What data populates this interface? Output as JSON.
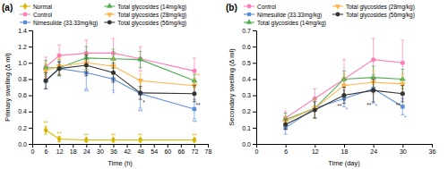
{
  "chart_data": [
    {
      "type": "line",
      "title": "(a)",
      "x": [
        6,
        12,
        24,
        36,
        48,
        72
      ],
      "series": [
        {
          "name": "Normal",
          "color": "#d4b800",
          "marker": "diamond",
          "values": [
            0.17,
            0.06,
            0.05,
            0.05,
            0.05,
            0.05
          ],
          "yerr": [
            0.05,
            0.03,
            0.02,
            0.02,
            0.02,
            0.02
          ]
        },
        {
          "name": "Control",
          "color": "#ff7eb6",
          "marker": "circle",
          "values": [
            0.95,
            1.09,
            1.12,
            1.12,
            1.05,
            0.9
          ],
          "yerr": [
            0.12,
            0.13,
            0.16,
            0.18,
            0.15,
            0.16
          ]
        },
        {
          "name": "Nimesulide (33.33mg/kg)",
          "color": "#5b8dd9",
          "marker": "square",
          "values": [
            0.78,
            0.93,
            0.88,
            0.8,
            0.62,
            0.43
          ],
          "yerr": [
            0.1,
            0.09,
            0.2,
            0.14,
            0.18,
            0.12
          ]
        },
        {
          "name": "Total glycosides (14mg/kg)",
          "color": "#4caf50",
          "marker": "triangle-up",
          "values": [
            0.94,
            0.94,
            1.06,
            1.05,
            1.04,
            0.78
          ],
          "yerr": [
            0.09,
            0.1,
            0.14,
            0.12,
            0.1,
            0.08
          ]
        },
        {
          "name": "Total glycosides (28mg/kg)",
          "color": "#ffb347",
          "marker": "triangle-down",
          "values": [
            0.9,
            0.96,
            1.0,
            0.96,
            0.78,
            0.72
          ],
          "yerr": [
            0.09,
            0.1,
            0.1,
            0.1,
            0.09,
            0.09
          ]
        },
        {
          "name": "Total glycosides (56mg/kg)",
          "color": "#333333",
          "marker": "circle",
          "values": [
            0.78,
            0.93,
            0.97,
            0.88,
            0.63,
            0.62
          ],
          "yerr": [
            0.1,
            0.08,
            0.13,
            0.12,
            0.08,
            0.1
          ]
        }
      ],
      "xlabel": "Time (h)",
      "ylabel": "Primary swelling (Δ ml)",
      "xlim": [
        0,
        78
      ],
      "ylim": [
        0,
        1.4
      ],
      "xticks": [
        0,
        6,
        12,
        18,
        24,
        30,
        36,
        42,
        48,
        54,
        60,
        66,
        72,
        78
      ],
      "yticks": [
        {
          "value": 0,
          "label": "0.0"
        },
        0.2,
        0.4,
        0.6,
        0.8,
        {
          "value": 1.0,
          "label": "1.0"
        },
        1.2,
        1.4
      ],
      "grid": false,
      "annotations": [
        {
          "text": "**",
          "x": 6,
          "series": "Normal"
        },
        {
          "text": "**",
          "x": 12,
          "series": "Normal"
        },
        {
          "text": "**",
          "x": 24,
          "series": "Normal"
        },
        {
          "text": "**",
          "x": 36,
          "series": "Normal"
        },
        {
          "text": "**",
          "x": 48,
          "series": "Normal"
        },
        {
          "text": "**",
          "x": 72,
          "series": "Normal"
        },
        {
          "text": "**",
          "x": 24,
          "series": "Nimesulide (33.33mg/kg)"
        },
        {
          "text": "*",
          "x": 36,
          "series": "Nimesulide (33.33mg/kg)"
        },
        {
          "text": "**",
          "x": 48,
          "series": "Nimesulide (33.33mg/kg)"
        },
        {
          "text": "**",
          "x": 72,
          "series": "Nimesulide (33.33mg/kg)"
        },
        {
          "text": "*",
          "x": 48,
          "series": "Total glycosides (56mg/kg)"
        },
        {
          "text": "**",
          "x": 72,
          "series": "Total glycosides (56mg/kg)"
        },
        {
          "text": "**",
          "x": 72,
          "series": "Total glycosides (28mg/kg)"
        }
      ]
    },
    {
      "type": "line",
      "title": "(b)",
      "x": [
        6,
        12,
        18,
        24,
        30
      ],
      "series": [
        {
          "name": "Control",
          "color": "#ff7eb6",
          "marker": "circle",
          "values": [
            0.16,
            0.28,
            0.4,
            0.52,
            0.5
          ],
          "yerr": [
            0.04,
            0.06,
            0.12,
            0.13,
            0.14
          ]
        },
        {
          "name": "Nimesulide (33.33mg/kg)",
          "color": "#5b8dd9",
          "marker": "square",
          "values": [
            0.1,
            0.22,
            0.28,
            0.34,
            0.23
          ],
          "yerr": [
            0.04,
            0.06,
            0.05,
            0.09,
            0.05
          ]
        },
        {
          "name": "Total glycosides (14mg/kg)",
          "color": "#4caf50",
          "marker": "triangle-up",
          "values": [
            0.15,
            0.22,
            0.4,
            0.41,
            0.4
          ],
          "yerr": [
            0.04,
            0.06,
            0.05,
            0.07,
            0.06
          ]
        },
        {
          "name": "Total glycosides (28mg/kg)",
          "color": "#ffb347",
          "marker": "triangle-down",
          "values": [
            0.14,
            0.22,
            0.36,
            0.38,
            0.37
          ],
          "yerr": [
            0.03,
            0.06,
            0.07,
            0.07,
            0.06
          ]
        },
        {
          "name": "Total glycosides (56mg/kg)",
          "color": "#333333",
          "marker": "circle",
          "values": [
            0.12,
            0.21,
            0.3,
            0.33,
            0.31
          ],
          "yerr": [
            0.03,
            0.05,
            0.05,
            0.07,
            0.05
          ]
        }
      ],
      "xlabel": "Time (day)",
      "ylabel": "Secondary swelling (Δ ml)",
      "xlim": [
        0,
        36
      ],
      "ylim": [
        0,
        0.7
      ],
      "xticks": [
        0,
        6,
        12,
        18,
        24,
        30,
        36
      ],
      "yticks": [
        {
          "value": 0.0,
          "label": "0.0"
        },
        0.1,
        0.2,
        0.3,
        0.4,
        0.5,
        0.6,
        0.7
      ],
      "grid": false,
      "annotations": [
        {
          "text": "*",
          "x": 18,
          "series": "Nimesulide (33.33mg/kg)"
        },
        {
          "text": "*",
          "x": 24,
          "series": "Nimesulide (33.33mg/kg)"
        },
        {
          "text": "*",
          "x": 30,
          "series": "Nimesulide (33.33mg/kg)"
        },
        {
          "text": "**",
          "x": 18,
          "series": "Total glycosides (56mg/kg)"
        },
        {
          "text": "**",
          "x": 24,
          "series": "Total glycosides (56mg/kg)"
        },
        {
          "text": "**",
          "x": 30,
          "series": "Total glycosides (56mg/kg)"
        }
      ]
    }
  ]
}
